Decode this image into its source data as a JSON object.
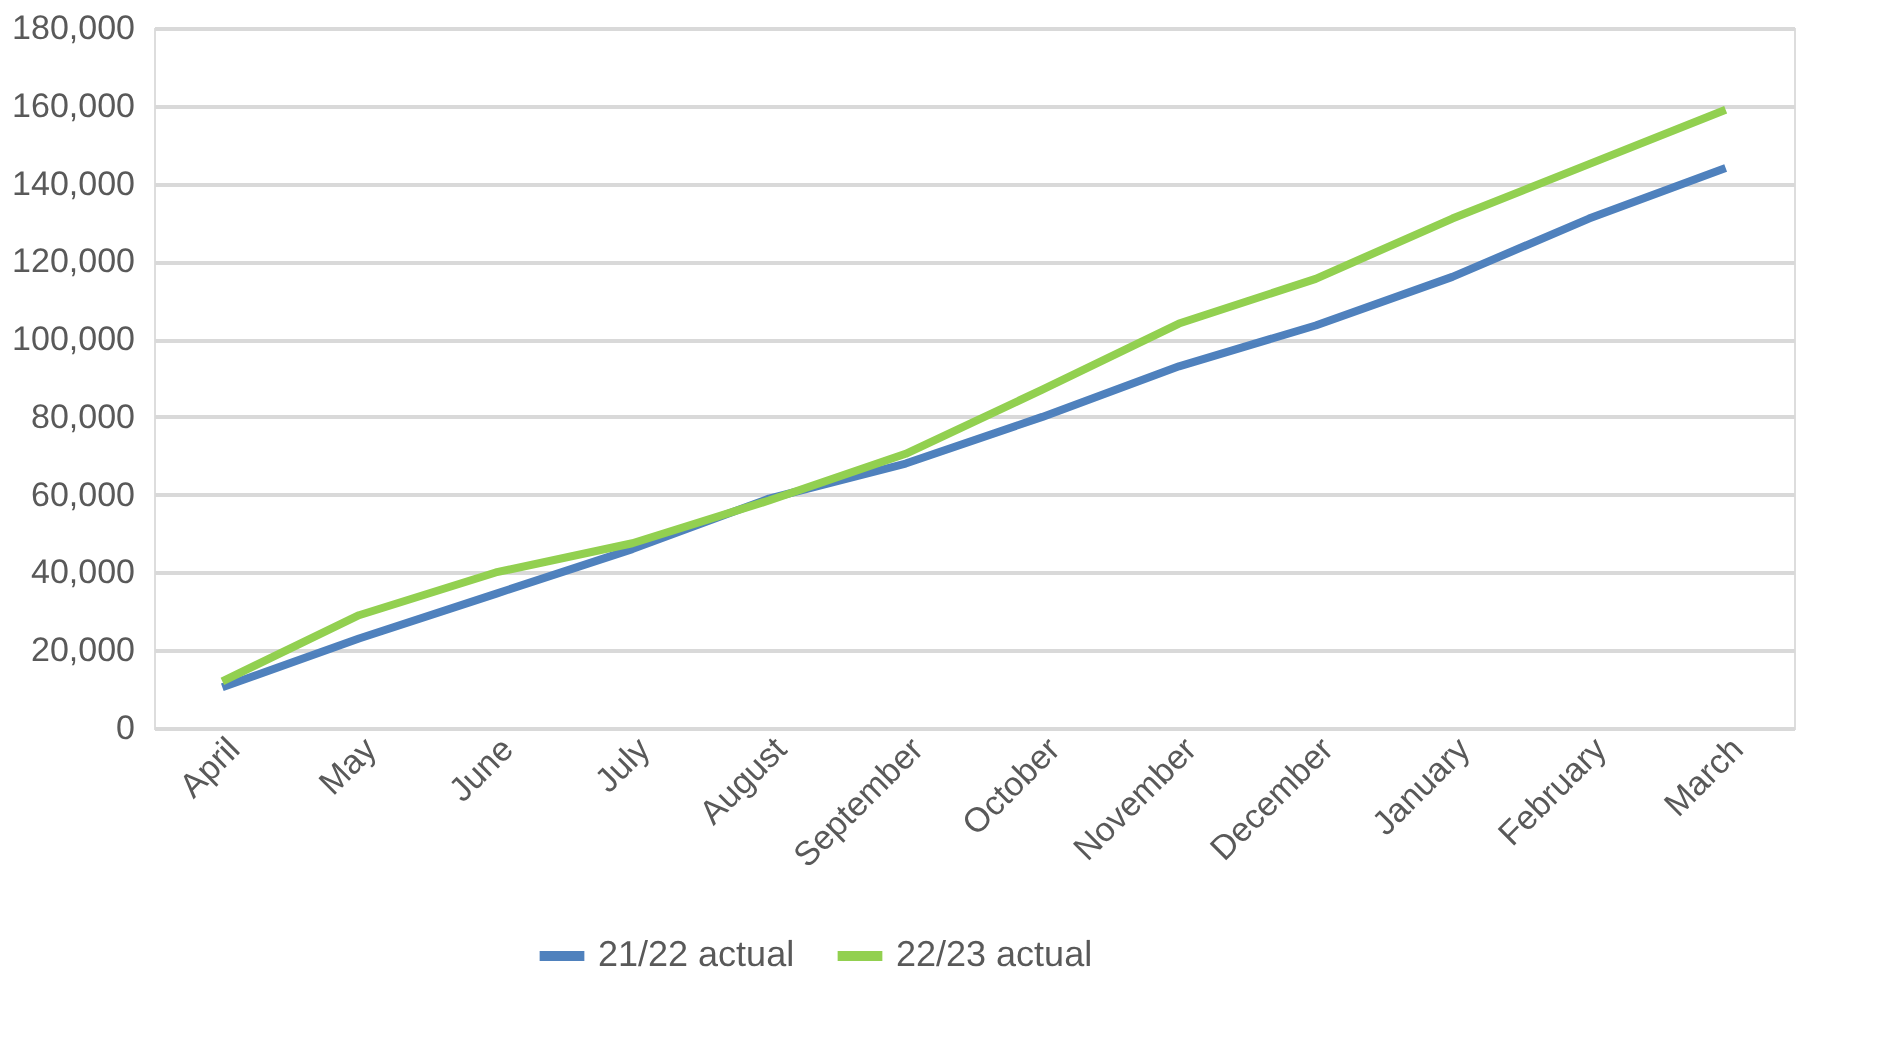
{
  "chart_data": {
    "type": "line",
    "categories": [
      "April",
      "May",
      "June",
      "July",
      "August",
      "September",
      "October",
      "November",
      "December",
      "January",
      "February",
      "March"
    ],
    "series": [
      {
        "name": "21/22 actual",
        "color": "#4f81bd",
        "values": [
          10500,
          23000,
          34500,
          46000,
          59000,
          68000,
          80000,
          93000,
          103500,
          116000,
          131000,
          144000
        ]
      },
      {
        "name": "22/23 actual",
        "color": "#92d050",
        "values": [
          12000,
          29000,
          40000,
          47500,
          58500,
          70500,
          87000,
          104000,
          115500,
          131000,
          145000,
          159000
        ]
      }
    ],
    "ylim": [
      0,
      180000
    ],
    "yticks": [
      0,
      {
        "value": 20000,
        "label": "20,000"
      },
      {
        "value": 40000,
        "label": "40,000"
      },
      {
        "value": 60000,
        "label": "60,000"
      },
      {
        "value": 80000,
        "label": "80,000"
      },
      {
        "value": 100000,
        "label": "100,000"
      },
      {
        "value": 120000,
        "label": "120,000"
      },
      {
        "value": 140000,
        "label": "140,000"
      },
      {
        "value": 160000,
        "label": "160,000"
      },
      {
        "value": 180000,
        "label": "180,000"
      }
    ],
    "grid": "y",
    "legend": "bottom",
    "marker": "none",
    "line_style": "solid"
  }
}
